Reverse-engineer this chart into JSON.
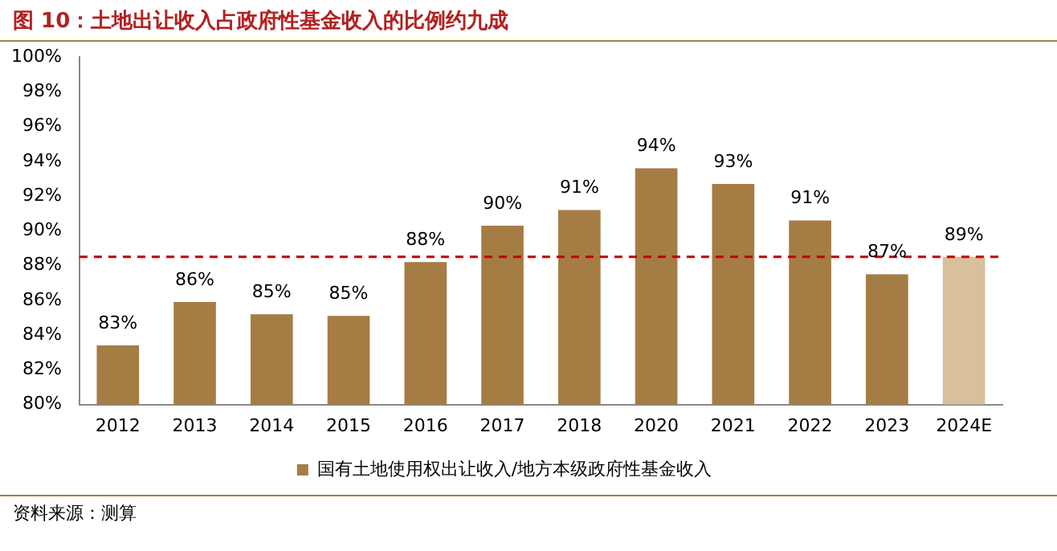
{
  "chart_data": {
    "type": "bar",
    "title": "图 10：土地出让收入占政府性基金收入的比例约九成",
    "categories": [
      "2012",
      "2013",
      "2014",
      "2015",
      "2016",
      "2017",
      "2018",
      "2020",
      "2021",
      "2022",
      "2023",
      "2024E"
    ],
    "series": [
      {
        "name": "国有土地使用权出让收入/地方本级政府性基金收入",
        "color": "#a67c45",
        "colors": [
          "#a67c45",
          "#a67c45",
          "#a67c45",
          "#a67c45",
          "#a67c45",
          "#a67c45",
          "#a67c45",
          "#a67c45",
          "#a67c45",
          "#a67c45",
          "#a67c45",
          "#d9bf9c"
        ],
        "values": [
          83.4,
          85.9,
          85.2,
          85.1,
          88.2,
          90.3,
          91.2,
          93.6,
          92.7,
          90.6,
          87.5,
          88.5
        ],
        "value_labels": [
          "83%",
          "86%",
          "85%",
          "85%",
          "88%",
          "90%",
          "91%",
          "94%",
          "93%",
          "91%",
          "87%",
          "89%"
        ]
      }
    ],
    "ylim": [
      80,
      100
    ],
    "yticks": [
      {
        "value": 80,
        "label": "80%"
      },
      {
        "value": 82,
        "label": "82%"
      },
      {
        "value": 84,
        "label": "84%"
      },
      {
        "value": 86,
        "label": "86%"
      },
      {
        "value": 88,
        "label": "88%"
      },
      {
        "value": 90,
        "label": "90%"
      },
      {
        "value": 92,
        "label": "92%"
      },
      {
        "value": 94,
        "label": "94%"
      },
      {
        "value": 96,
        "label": "96%"
      },
      {
        "value": 98,
        "label": "98%"
      },
      {
        "value": 100,
        "label": "100%"
      }
    ],
    "ref_lines": [
      {
        "axis": "y",
        "value": 88.5,
        "color": "#c00000",
        "line_style": "dashed"
      }
    ],
    "grid": false,
    "legend": "bottom",
    "annotations": [
      "资料来源：测算"
    ]
  }
}
